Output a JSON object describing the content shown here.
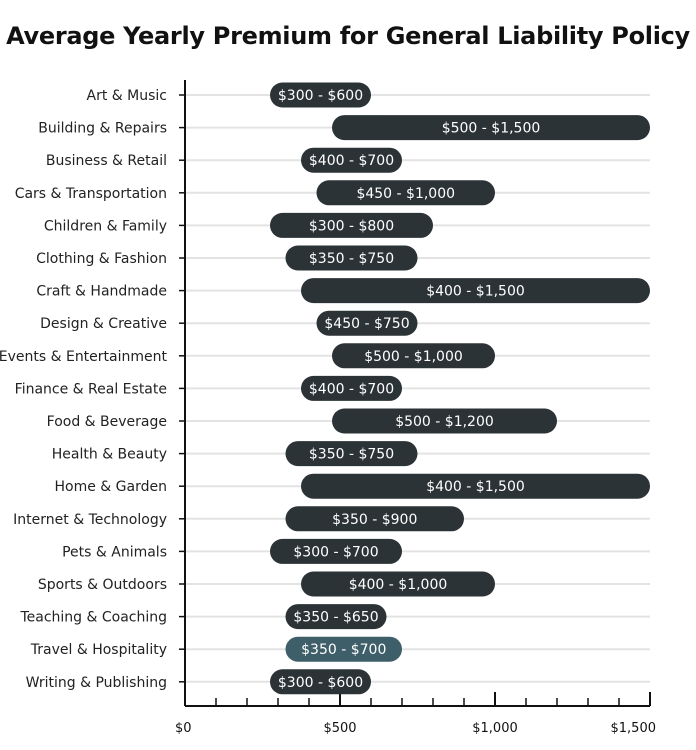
{
  "chart_data": {
    "type": "bar",
    "orientation": "horizontal-range",
    "title": "Average Yearly Premium for General Liability Policy",
    "xlim": [
      0,
      1500
    ],
    "x_ticks": [
      {
        "value": 0,
        "label": "$0"
      },
      {
        "value": 500,
        "label": "$500"
      },
      {
        "value": 1000,
        "label": "$1,000"
      },
      {
        "value": 1500,
        "label": "$1,500"
      }
    ],
    "minor_tick_step": 100,
    "grid": true,
    "colors": {
      "bar": "#2b3336",
      "highlight": "#3e5e69",
      "grid": "#e3e3e3",
      "axis": "#111111"
    },
    "categories": [
      {
        "name": "Art & Music",
        "low": 300,
        "high": 600,
        "label": "$300 - $600"
      },
      {
        "name": "Building & Repairs",
        "low": 500,
        "high": 1500,
        "label": "$500 - $1,500"
      },
      {
        "name": "Business & Retail",
        "low": 400,
        "high": 700,
        "label": "$400 - $700"
      },
      {
        "name": "Cars & Transportation",
        "low": 450,
        "high": 1000,
        "label": "$450 - $1,000"
      },
      {
        "name": "Children & Family",
        "low": 300,
        "high": 800,
        "label": "$300 - $800"
      },
      {
        "name": "Clothing & Fashion",
        "low": 350,
        "high": 750,
        "label": "$350 - $750"
      },
      {
        "name": "Craft & Handmade",
        "low": 400,
        "high": 1500,
        "label": "$400 - $1,500"
      },
      {
        "name": "Design & Creative",
        "low": 450,
        "high": 750,
        "label": "$450 - $750"
      },
      {
        "name": "Events & Entertainment",
        "low": 500,
        "high": 1000,
        "label": "$500 - $1,000"
      },
      {
        "name": "Finance & Real Estate",
        "low": 400,
        "high": 700,
        "label": "$400 - $700"
      },
      {
        "name": "Food & Beverage",
        "low": 500,
        "high": 1200,
        "label": "$500 - $1,200"
      },
      {
        "name": "Health & Beauty",
        "low": 350,
        "high": 750,
        "label": "$350 - $750"
      },
      {
        "name": "Home & Garden",
        "low": 400,
        "high": 1500,
        "label": "$400 - $1,500"
      },
      {
        "name": "Internet & Technology",
        "low": 350,
        "high": 900,
        "label": "$350 - $900"
      },
      {
        "name": "Pets & Animals",
        "low": 300,
        "high": 700,
        "label": "$300 - $700"
      },
      {
        "name": "Sports & Outdoors",
        "low": 400,
        "high": 1000,
        "label": "$400 - $1,000"
      },
      {
        "name": "Teaching & Coaching",
        "low": 350,
        "high": 650,
        "label": "$350 - $650"
      },
      {
        "name": "Travel & Hospitality",
        "low": 350,
        "high": 700,
        "label": "$350 - $700",
        "highlighted": true
      },
      {
        "name": "Writing & Publishing",
        "low": 300,
        "high": 600,
        "label": "$300 - $600"
      }
    ]
  }
}
